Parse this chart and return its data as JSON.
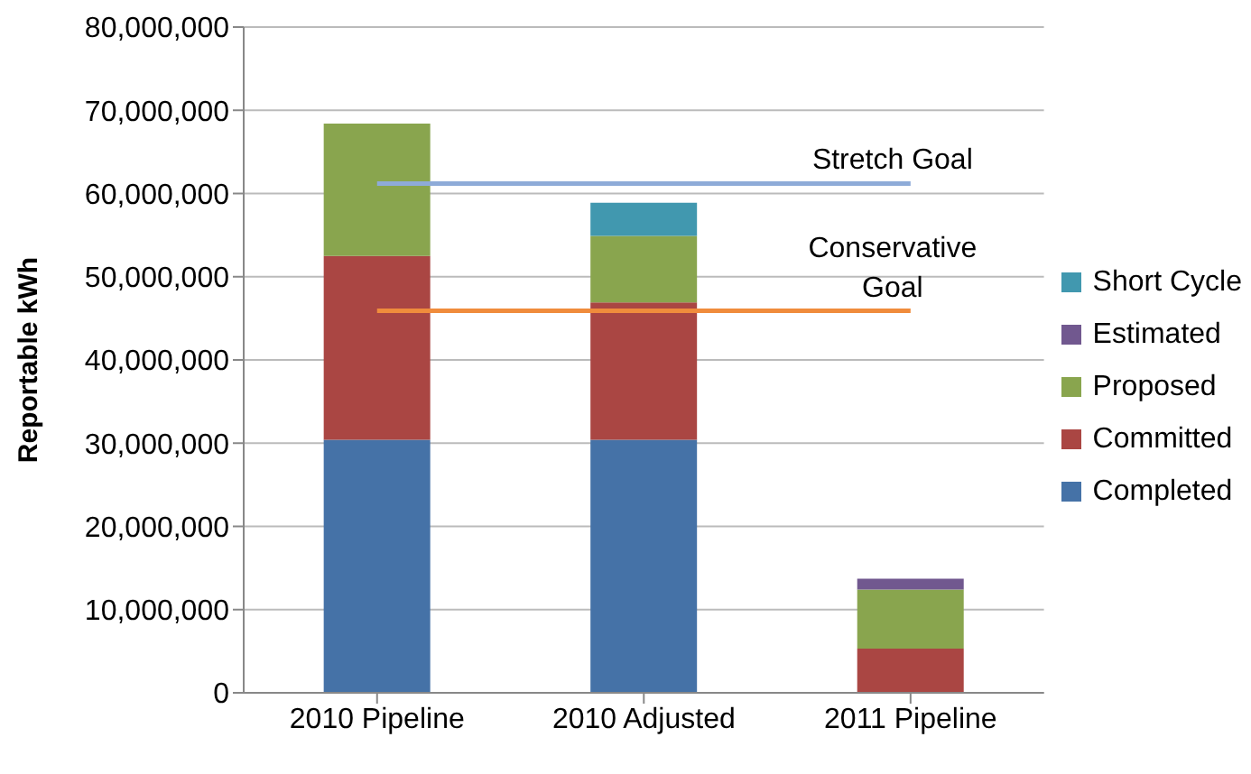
{
  "chart_data": {
    "type": "bar",
    "stacked": true,
    "ylabel": "Reportable kWh",
    "categories": [
      "2010 Pipeline",
      "2010 Adjusted",
      "2011 Pipeline"
    ],
    "series": [
      {
        "name": "Completed",
        "color": "#4572a7",
        "values": [
          30400000,
          30400000,
          null
        ]
      },
      {
        "name": "Committed",
        "color": "#aa4643",
        "values": [
          22100000,
          16500000,
          5300000
        ]
      },
      {
        "name": "Proposed",
        "color": "#89a54e",
        "values": [
          15900000,
          8000000,
          7100000
        ]
      },
      {
        "name": "Estimated",
        "color": "#71588f",
        "values": [
          null,
          null,
          1300000
        ]
      },
      {
        "name": "Short Cycle",
        "color": "#4198af",
        "values": [
          null,
          4000000,
          null
        ]
      },
      {
        "name": "Stretch Goal",
        "type": "line",
        "color": "#8eabd8",
        "values": [
          61200000,
          61200000,
          61200000
        ]
      },
      {
        "name": "Conservative Goal",
        "type": "line",
        "color": "#f08c3c",
        "values": [
          45900000,
          45900000,
          45900000
        ]
      }
    ],
    "ylim": [
      0,
      80000000
    ],
    "yticks": [
      0,
      {
        "value": 10000000,
        "label": "10,000,000"
      },
      {
        "value": 20000000,
        "label": "20,000,000"
      },
      {
        "value": 30000000,
        "label": "30,000,000"
      },
      {
        "value": 40000000,
        "label": "40,000,000"
      },
      {
        "value": 50000000,
        "label": "50,000,000"
      },
      {
        "value": 60000000,
        "label": "60,000,000"
      },
      {
        "value": 70000000,
        "label": "70,000,000"
      },
      {
        "value": 80000000,
        "label": "80,000,000"
      }
    ],
    "grid": "y",
    "legend": "right",
    "marker": "none"
  }
}
